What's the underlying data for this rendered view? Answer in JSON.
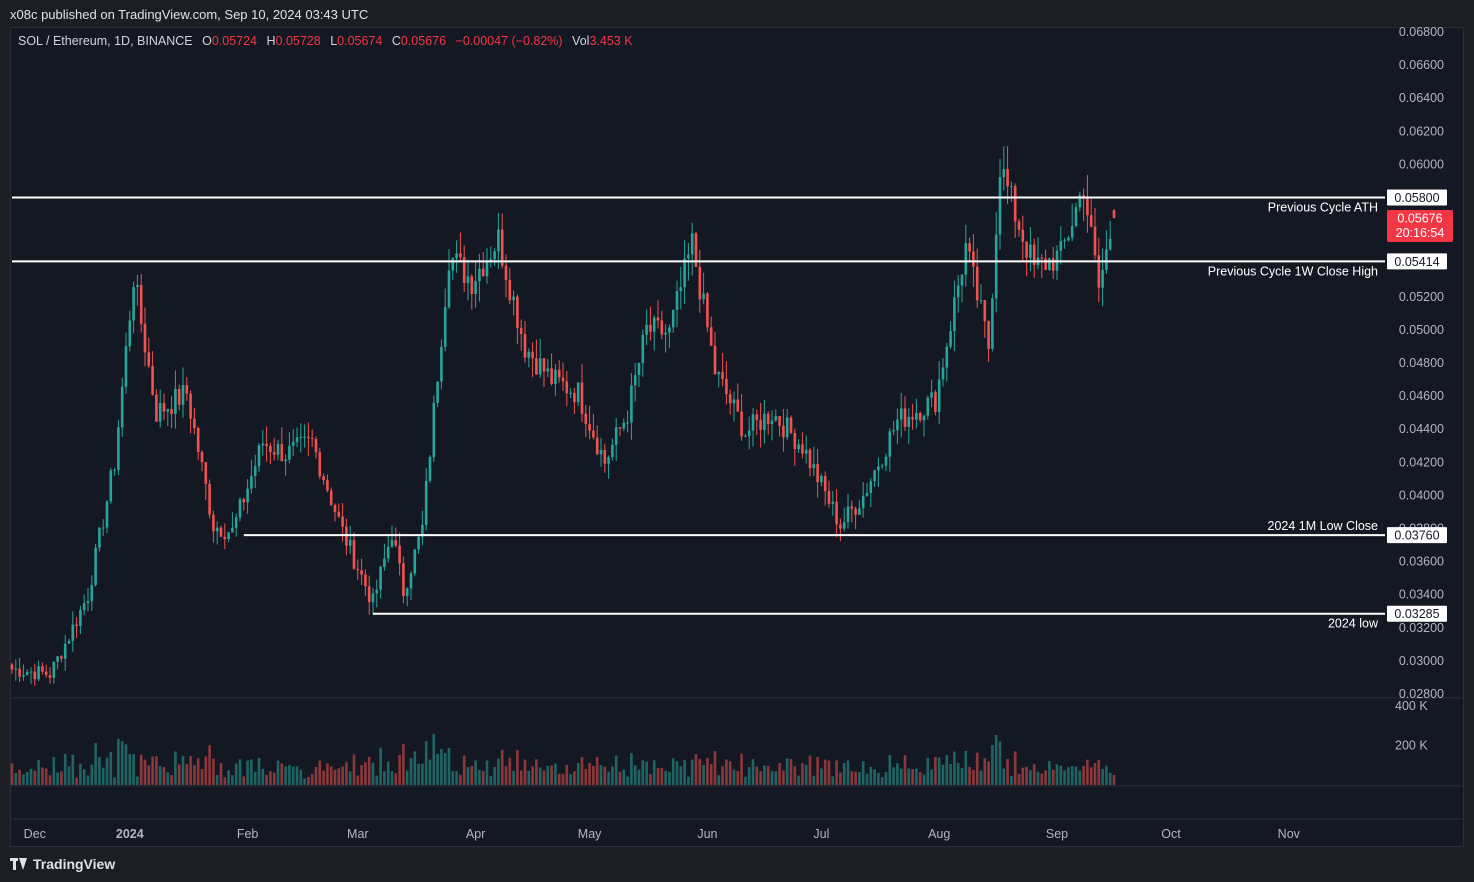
{
  "header": {
    "published": "x08c published on TradingView.com, Sep 10, 2024 03:43 UTC"
  },
  "legend": {
    "symbol": "SOL / Ethereum, 1D, BINANCE",
    "o_label": "O",
    "o": "0.05724",
    "h_label": "H",
    "h": "0.05728",
    "l_label": "L",
    "l": "0.05674",
    "c_label": "C",
    "c": "0.05676",
    "change": "−0.00047 (−0.82%)",
    "vol_label": "Vol",
    "vol": "3.453 K"
  },
  "footer": {
    "brand": "TradingView"
  },
  "colors": {
    "up": "#26a69a",
    "down": "#ef5350",
    "background": "#141823",
    "line": "#ffffff",
    "price_badge": "#f23645"
  },
  "chart_data": {
    "type": "candlestick",
    "ylim": [
      0.0278,
      0.0688
    ],
    "y_ticks": [
      "0.06800",
      "0.06600",
      "0.06400",
      "0.06200",
      "0.06000",
      "0.05800",
      "0.05600",
      "0.05400",
      "0.05200",
      "0.05000",
      "0.04800",
      "0.04600",
      "0.04400",
      "0.04200",
      "0.04000",
      "0.03800",
      "0.03600",
      "0.03400",
      "0.03200",
      "0.03000",
      "0.02800"
    ],
    "x_ticks": [
      "Dec",
      "2024",
      "Feb",
      "Mar",
      "Apr",
      "May",
      "Jun",
      "Jul",
      "Aug",
      "Sep",
      "Oct",
      "Nov"
    ],
    "x_tick_days": [
      6,
      31,
      62,
      91,
      122,
      152,
      183,
      213,
      244,
      275,
      305,
      336
    ],
    "date_start": "2023-11-25",
    "volume_ticks": [
      "400 K",
      "200 K"
    ],
    "last_price": "0.05676",
    "countdown": "20:16:54",
    "levels": [
      {
        "value": 0.058,
        "label": "0.05800",
        "note": "Previous Cycle ATH",
        "start_date": "2023-11-25"
      },
      {
        "value": 0.05414,
        "label": "0.05414",
        "note": "Previous Cycle 1W Close High",
        "start_date": "2023-11-25"
      },
      {
        "value": 0.0376,
        "label": "0.03760",
        "note": "2024 1M Low Close",
        "start_date": "2024-01-25"
      },
      {
        "value": 0.03285,
        "label": "0.03285",
        "note": "2024 low",
        "start_date": "2024-02-28"
      }
    ],
    "anchors": [
      [
        "2023-11-25",
        0.0295
      ],
      [
        "2023-12-05",
        0.0292
      ],
      [
        "2023-12-10",
        0.0315
      ],
      [
        "2023-12-15",
        0.034
      ],
      [
        "2023-12-22",
        0.042
      ],
      [
        "2023-12-27",
        0.0532
      ],
      [
        "2024-01-02",
        0.045
      ],
      [
        "2024-01-10",
        0.0462
      ],
      [
        "2024-01-17",
        0.0382
      ],
      [
        "2024-01-22",
        0.0378
      ],
      [
        "2024-01-30",
        0.0432
      ],
      [
        "2024-02-05",
        0.0425
      ],
      [
        "2024-02-12",
        0.0432
      ],
      [
        "2024-02-20",
        0.0378
      ],
      [
        "2024-02-28",
        0.0335
      ],
      [
        "2024-03-04",
        0.0378
      ],
      [
        "2024-03-07",
        0.0342
      ],
      [
        "2024-03-12",
        0.038
      ],
      [
        "2024-03-19",
        0.0545
      ],
      [
        "2024-03-25",
        0.053
      ],
      [
        "2024-04-01",
        0.0555
      ],
      [
        "2024-04-08",
        0.049
      ],
      [
        "2024-04-15",
        0.047
      ],
      [
        "2024-04-22",
        0.0462
      ],
      [
        "2024-04-29",
        0.042
      ],
      [
        "2024-05-05",
        0.045
      ],
      [
        "2024-05-10",
        0.05
      ],
      [
        "2024-05-16",
        0.0498
      ],
      [
        "2024-05-22",
        0.0552
      ],
      [
        "2024-05-28",
        0.0475
      ],
      [
        "2024-06-05",
        0.0438
      ],
      [
        "2024-06-12",
        0.045
      ],
      [
        "2024-06-20",
        0.043
      ],
      [
        "2024-06-30",
        0.0382
      ],
      [
        "2024-07-06",
        0.04
      ],
      [
        "2024-07-15",
        0.0445
      ],
      [
        "2024-07-25",
        0.0458
      ],
      [
        "2024-08-02",
        0.055
      ],
      [
        "2024-08-08",
        0.049
      ],
      [
        "2024-08-11",
        0.06
      ],
      [
        "2024-08-15",
        0.057
      ],
      [
        "2024-08-20",
        0.0537
      ],
      [
        "2024-08-27",
        0.0545
      ],
      [
        "2024-09-02",
        0.0587
      ],
      [
        "2024-09-06",
        0.0525
      ],
      [
        "2024-09-10",
        0.0568
      ]
    ],
    "last_candle": {
      "o": 0.05724,
      "h": 0.05728,
      "l": 0.05674,
      "c": 0.05676
    }
  }
}
